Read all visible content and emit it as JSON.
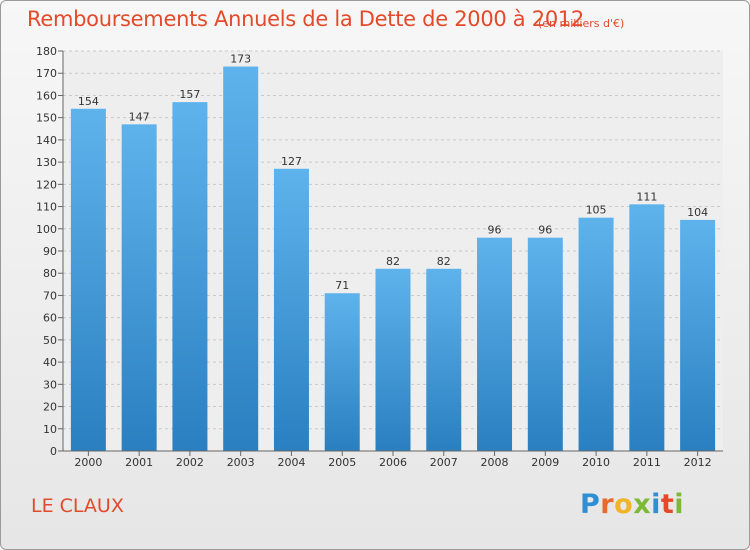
{
  "header": {
    "title": "Remboursements Annuels de la Dette de 2000 à 2012",
    "unit": "(en milliers d'€)"
  },
  "footer": {
    "commune": "LE CLAUX",
    "logo": "Proxiti"
  },
  "colors": {
    "title": "#e34a2a",
    "bar_top": "#5fb3ec",
    "bar_bottom": "#2a7fc0"
  },
  "chart_data": {
    "type": "bar",
    "title": "Remboursements Annuels de la Dette de 2000 à 2012",
    "subtitle": "(en milliers d'€)",
    "xlabel": "",
    "ylabel": "",
    "categories": [
      "2000",
      "2001",
      "2002",
      "2003",
      "2004",
      "2005",
      "2006",
      "2007",
      "2008",
      "2009",
      "2010",
      "2011",
      "2012"
    ],
    "values": [
      154,
      147,
      157,
      173,
      127,
      71,
      82,
      82,
      96,
      96,
      105,
      111,
      104
    ],
    "ylim": [
      0,
      180
    ],
    "ytick_step": 10,
    "grid": true,
    "legend": "none"
  }
}
